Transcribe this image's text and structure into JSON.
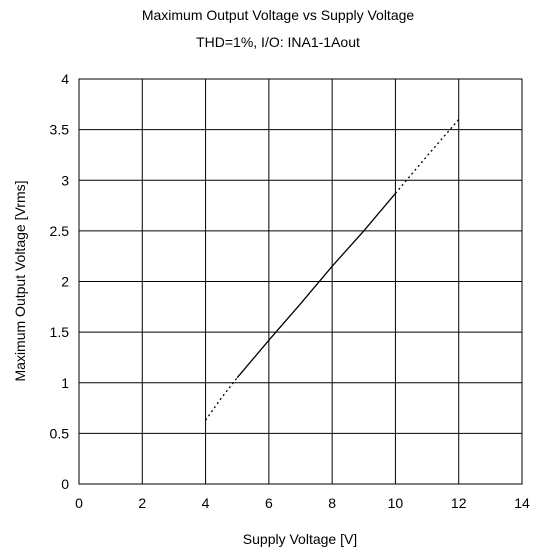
{
  "chart_data": {
    "type": "line",
    "title": "Maximum Output Voltage vs Supply Voltage",
    "subtitle": "THD=1%,  I/O: INA1-1Aout",
    "xlabel": "Supply Voltage [V]",
    "ylabel": "Maximum Output Voltage [Vrms]",
    "xlim": [
      0,
      14
    ],
    "ylim": [
      0,
      4
    ],
    "xticks": [
      0,
      2,
      4,
      6,
      8,
      10,
      12,
      14
    ],
    "yticks": [
      0,
      0.5,
      1,
      1.5,
      2,
      2.5,
      3,
      3.5,
      4
    ],
    "xtick_labels": [
      "0",
      "2",
      "4",
      "6",
      "8",
      "10",
      "12",
      "14"
    ],
    "ytick_labels": [
      "0",
      "0.5",
      "1",
      "1.5",
      "2",
      "2.5",
      "3",
      "3.5",
      "4"
    ],
    "grid": true,
    "series": [
      {
        "style": "solid",
        "x": [
          5.0,
          6.0,
          7.0,
          8.0,
          9.0,
          10.0
        ],
        "y": [
          1.05,
          1.42,
          1.78,
          2.15,
          2.5,
          2.87
        ]
      },
      {
        "style": "dotted",
        "x": [
          4.0,
          4.5,
          5.0
        ],
        "y": [
          0.63,
          0.85,
          1.05
        ]
      },
      {
        "style": "dotted",
        "x": [
          10.0,
          11.0,
          12.0
        ],
        "y": [
          2.87,
          3.24,
          3.6
        ]
      }
    ],
    "colors": {
      "line": "#000000",
      "grid": "#000000",
      "background": "#ffffff"
    }
  }
}
